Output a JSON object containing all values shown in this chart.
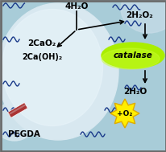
{
  "bg_color": "#a8ccd8",
  "border_color": "#6a6a6a",
  "sphere_color_outer": "#d8e8f0",
  "sphere_color_inner": "#e8f4fa",
  "sphere2_color": "#c8dce8",
  "catalase_color1": "#aaee00",
  "catalase_color2": "#66cc00",
  "sun_color": "#ffee00",
  "sun_outline": "#ddaa00",
  "pegda_color1": "#aa3333",
  "pegda_color2": "#ccaaaa",
  "text_4H2O": "4H₂O",
  "text_2H2O2": "2H₂O₂",
  "text_2CaO2": "2CaO₂",
  "text_2CaOH2": "2Ca(OH)₂",
  "text_2H2O": "2H₂O",
  "text_catalase": "catalase",
  "text_PEGDA": "PEGDA",
  "text_O2": "+O₂",
  "wave_color": "#1a3a8a",
  "arrow_color": "#000000"
}
